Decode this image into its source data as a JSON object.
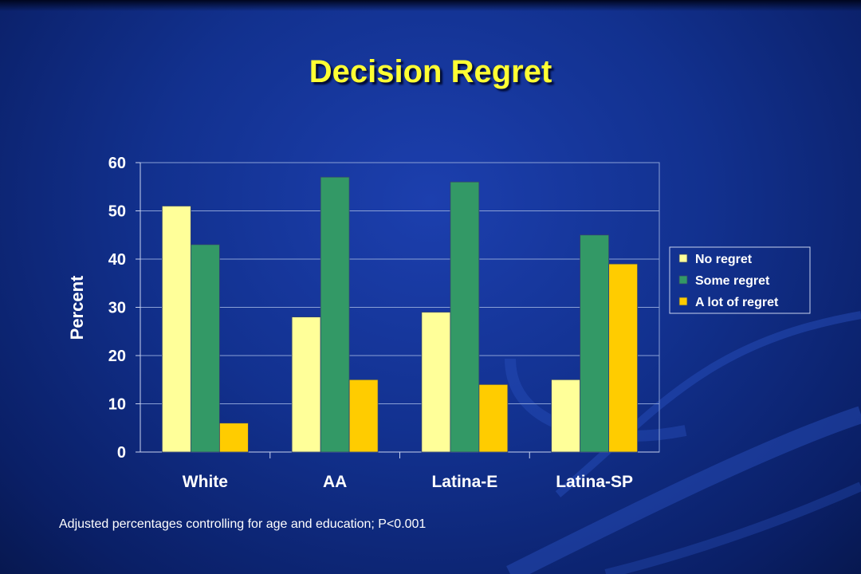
{
  "title": "Decision Regret",
  "footnote": "Adjusted percentages controlling for  age and education; P<0.001",
  "colors": {
    "background": "#12318f",
    "title": "#ffff33",
    "text": "#ffffff"
  },
  "chart_data": {
    "type": "bar",
    "title": "",
    "xlabel": "",
    "ylabel": "Percent",
    "ylim": [
      0,
      60
    ],
    "yticks": [
      0,
      10,
      20,
      30,
      40,
      50,
      60
    ],
    "grid": true,
    "legend_position": "right",
    "categories": [
      "White",
      "AA",
      "Latina-E",
      "Latina-SP"
    ],
    "series": [
      {
        "name": "No regret",
        "color": "#ffff99",
        "values": [
          51,
          28,
          29,
          15
        ]
      },
      {
        "name": "Some regret",
        "color": "#339966",
        "values": [
          43,
          57,
          56,
          45
        ]
      },
      {
        "name": "A lot of regret",
        "color": "#ffcc00",
        "values": [
          6,
          15,
          14,
          39
        ]
      }
    ]
  }
}
